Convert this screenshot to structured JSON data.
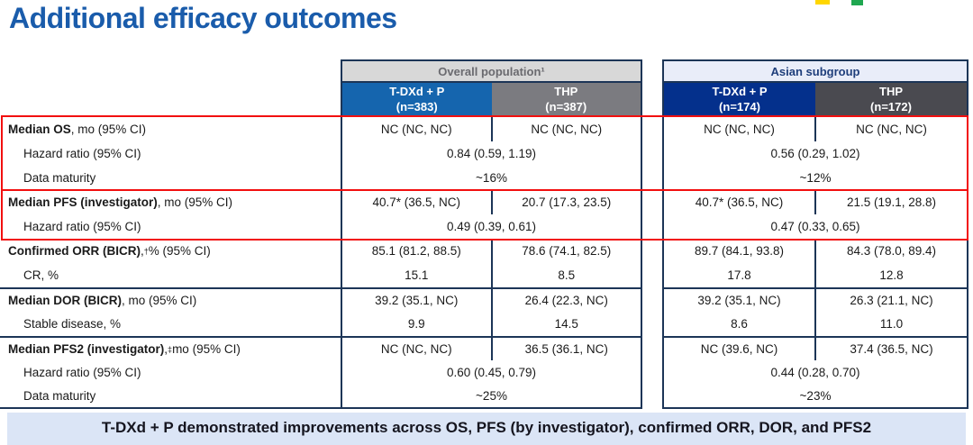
{
  "title": "Additional efficacy outcomes",
  "colors": {
    "title": "#1A5CAB",
    "border_navy": "#1C3557",
    "highlight_red": "#F20F0F",
    "overall_header_bg": "#D8D8D8",
    "overall_header_text": "#6A6A6F",
    "asian_header_bg": "#E9EDF9",
    "asian_header_text": "#1E3E7B",
    "overall_tdxd_bg": "#1565AE",
    "overall_thp_bg": "#7B7B80",
    "asian_tdxd_bg": "#04308C",
    "asian_thp_bg": "#4A4A50",
    "banner_bg": "#DBE5F6",
    "logo_yellow": "#FFD600",
    "logo_green": "#1FA750"
  },
  "table": {
    "groups": [
      {
        "header": "Overall population¹",
        "arms": [
          {
            "name": "T-DXd + P",
            "n": "(n=383)"
          },
          {
            "name": "THP",
            "n": "(n=387)"
          }
        ]
      },
      {
        "header": "Asian subgroup",
        "arms": [
          {
            "name": "T-DXd + P",
            "n": "(n=174)"
          },
          {
            "name": "THP",
            "n": "(n=172)"
          }
        ]
      }
    ],
    "rows": [
      {
        "label_bold": "Median OS",
        "label_mid": "",
        "label_sup": "",
        "label_rest": ", mo (95% CI)",
        "g1": [
          "NC (NC, NC)",
          "NC (NC, NC)"
        ],
        "g2": [
          "NC (NC, NC)",
          "NC (NC, NC)"
        ]
      },
      {
        "label_bold": "",
        "label_mid": "",
        "label_sup": "",
        "label_rest": "Hazard ratio (95% CI)",
        "g1_span": "0.84 (0.59, 1.19)",
        "g2_span": "0.56 (0.29, 1.02)"
      },
      {
        "label_bold": "",
        "label_mid": "",
        "label_sup": "",
        "label_rest": "Data maturity",
        "g1_span": "~16%",
        "g2_span": "~12%"
      },
      {
        "label_bold": "Median PFS (investigator)",
        "label_mid": "",
        "label_sup": "",
        "label_rest": ", mo (95% CI)",
        "g1": [
          "40.7* (36.5, NC)",
          "20.7 (17.3, 23.5)"
        ],
        "g2": [
          "40.7* (36.5, NC)",
          "21.5 (19.1, 28.8)"
        ]
      },
      {
        "label_bold": "",
        "label_mid": "",
        "label_sup": "",
        "label_rest": "Hazard ratio (95% CI)",
        "g1_span": "0.49 (0.39, 0.61)",
        "g2_span": "0.47 (0.33, 0.65)"
      },
      {
        "label_bold": "Confirmed ORR (BICR)",
        "label_mid": ",",
        "label_sup": "†",
        "label_rest": " % (95% CI)",
        "g1": [
          "85.1 (81.2, 88.5)",
          "78.6 (74.1, 82.5)"
        ],
        "g2": [
          "89.7 (84.1, 93.8)",
          "84.3 (78.0, 89.4)"
        ]
      },
      {
        "label_bold": "",
        "label_mid": "",
        "label_sup": "",
        "label_rest": "CR, %",
        "g1": [
          "15.1",
          "8.5"
        ],
        "g2": [
          "17.8",
          "12.8"
        ]
      },
      {
        "label_bold": "Median DOR (BICR)",
        "label_mid": "",
        "label_sup": "",
        "label_rest": ", mo (95% CI)",
        "g1": [
          "39.2 (35.1, NC)",
          "26.4 (22.3, NC)"
        ],
        "g2": [
          "39.2 (35.1, NC)",
          "26.3 (21.1, NC)"
        ]
      },
      {
        "label_bold": "",
        "label_mid": "",
        "label_sup": "",
        "label_rest": "Stable disease, %",
        "g1": [
          "9.9",
          "14.5"
        ],
        "g2": [
          "8.6",
          "11.0"
        ]
      },
      {
        "label_bold": "Median PFS2 (investigator)",
        "label_mid": ",",
        "label_sup": "‡",
        "label_rest": " mo (95% CI)",
        "g1": [
          "NC (NC, NC)",
          "36.5 (36.1, NC)"
        ],
        "g2": [
          "NC (39.6, NC)",
          "37.4 (36.5, NC)"
        ]
      },
      {
        "label_bold": "",
        "label_mid": "",
        "label_sup": "",
        "label_rest": "Hazard ratio (95% CI)",
        "g1_span": "0.60 (0.45, 0.79)",
        "g2_span": "0.44 (0.28, 0.70)"
      },
      {
        "label_bold": "",
        "label_mid": "",
        "label_sup": "",
        "label_rest": "Data maturity",
        "g1_span": "~25%",
        "g2_span": "~23%"
      }
    ]
  },
  "banner": "T-DXd + P demonstrated improvements across OS, PFS (by investigator), confirmed ORR, DOR, and PFS2"
}
